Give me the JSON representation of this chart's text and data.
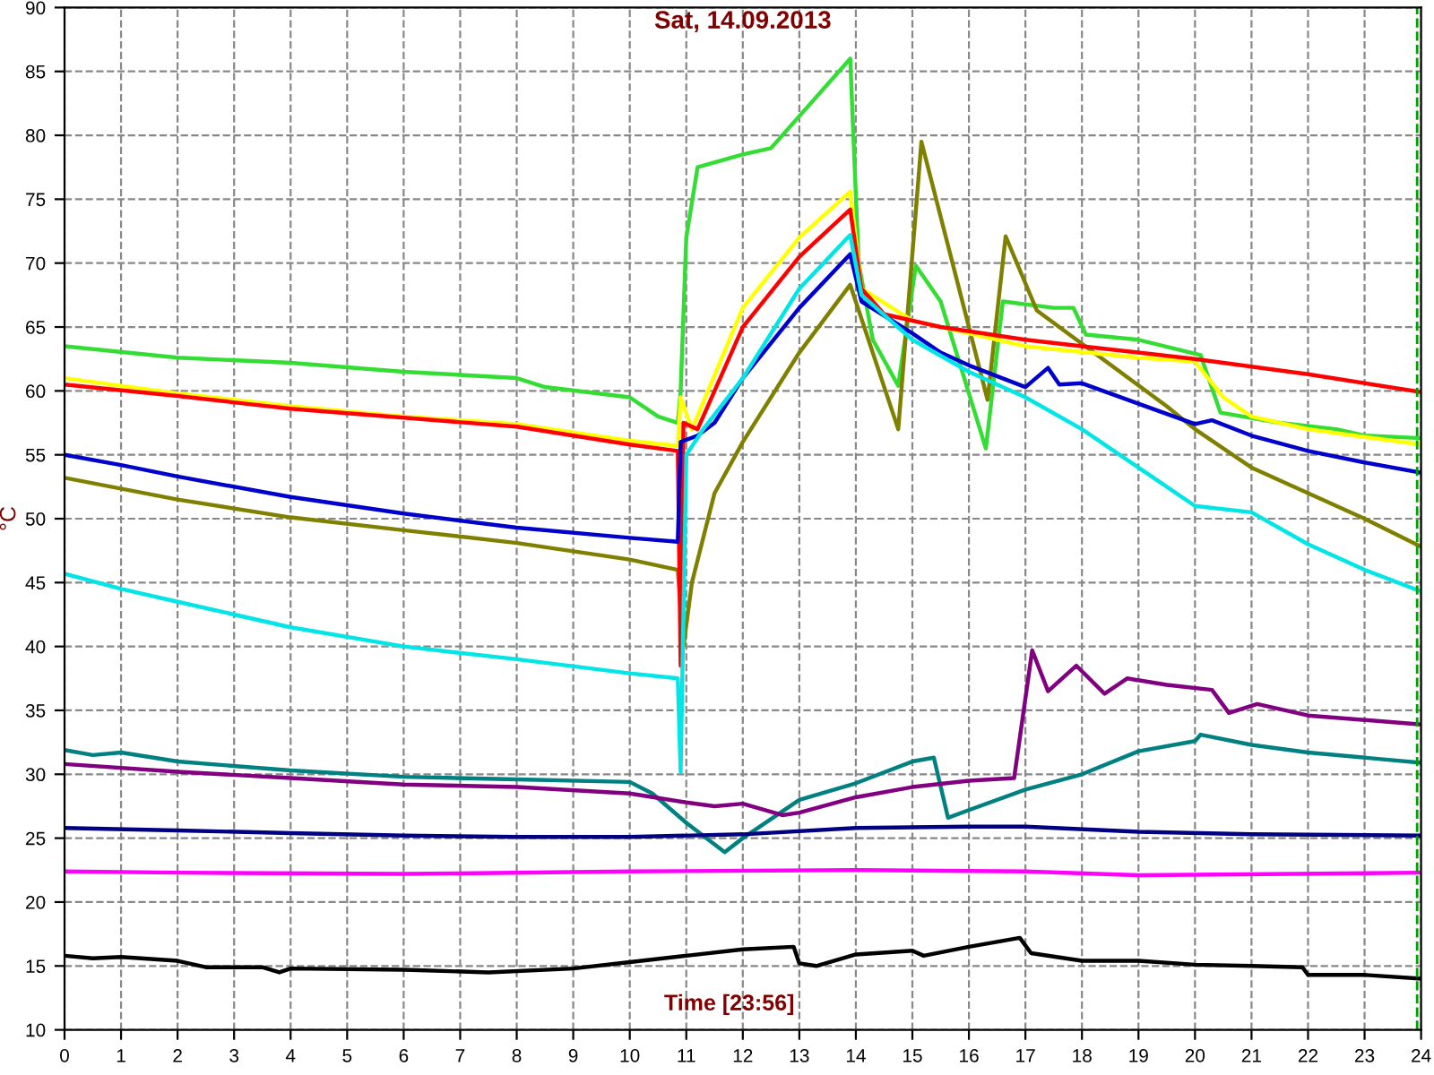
{
  "chart_data": {
    "type": "line",
    "title": "Sat, 14.09.2013",
    "xlabel": "Time [23:56]",
    "ylabel": "°C",
    "xlim": [
      0,
      24
    ],
    "xticks": [
      0,
      1,
      2,
      3,
      4,
      5,
      6,
      7,
      8,
      9,
      10,
      11,
      12,
      13,
      14,
      15,
      16,
      17,
      18,
      19,
      20,
      21,
      22,
      23,
      24
    ],
    "ylim": [
      10,
      90
    ],
    "yticks": [
      10,
      15,
      20,
      25,
      30,
      35,
      40,
      45,
      50,
      55,
      60,
      65,
      70,
      75,
      80,
      85,
      90
    ],
    "grid": true,
    "legend": false,
    "marker": "none",
    "line_style": "solid",
    "ref_lines": [
      {
        "axis": "x",
        "value": 23.93,
        "color": "#00a000",
        "line_style": "dashed"
      }
    ],
    "series": [
      {
        "color": "#33dd33",
        "x": [
          0,
          2,
          4,
          6,
          8,
          8.5,
          10,
          10.5,
          10.85,
          10.9,
          11.0,
          11.2,
          12,
          12.5,
          13,
          13.9,
          14.05,
          14.3,
          14.75,
          15.06,
          15.5,
          16.3,
          16.6,
          17.5,
          17.85,
          18.07,
          19,
          20.1,
          20.45,
          21.5,
          22.5,
          23,
          24
        ],
        "values": [
          63.5,
          62.6,
          62.2,
          61.5,
          61,
          60.3,
          59.5,
          58,
          57.5,
          60,
          72,
          77.5,
          78.5,
          79,
          81.5,
          86,
          70,
          64,
          60.4,
          69.8,
          67,
          55.5,
          67,
          66.5,
          66.5,
          64.4,
          64,
          62.8,
          58.3,
          57.5,
          57,
          56.5,
          56.3
        ]
      },
      {
        "color": "#808000",
        "x": [
          0,
          2,
          4,
          6,
          8,
          10,
          10.85,
          10.95,
          11.1,
          11.5,
          12,
          13,
          13.9,
          14.75,
          15.16,
          16.33,
          16.65,
          17.2,
          19.5,
          20,
          21,
          22,
          23,
          24
        ],
        "values": [
          53.2,
          51.5,
          50.1,
          49.1,
          48.1,
          46.8,
          46,
          40,
          45,
          52,
          56,
          63,
          68.3,
          57,
          79.5,
          59.3,
          72.1,
          66.3,
          58.8,
          57,
          54,
          52,
          50,
          47.8
        ]
      },
      {
        "color": "#ffff00",
        "x": [
          0,
          2,
          4,
          6,
          8,
          10,
          10.85,
          10.9,
          11.1,
          12,
          13,
          13.9,
          14.1,
          15,
          17,
          19,
          20,
          20.5,
          21,
          22,
          24
        ],
        "values": [
          61,
          59.8,
          58.8,
          58,
          57.4,
          56.1,
          55.7,
          59.5,
          57,
          66.5,
          72,
          75.6,
          68,
          65.5,
          63.5,
          62.6,
          62.3,
          59.5,
          58,
          57,
          55.8
        ]
      },
      {
        "color": "#ff0000",
        "x": [
          0,
          2,
          4,
          6,
          8,
          10,
          10.85,
          10.9,
          10.95,
          11.2,
          12,
          13,
          13.9,
          14.1,
          14.5,
          15.5,
          17,
          18,
          20,
          22,
          24
        ],
        "values": [
          60.5,
          59.6,
          58.6,
          57.9,
          57.2,
          55.8,
          55.3,
          38.5,
          57.5,
          57,
          65,
          70.5,
          74.2,
          68,
          66,
          65,
          64,
          63.5,
          62.5,
          61.3,
          59.9
        ]
      },
      {
        "color": "#0000cc",
        "x": [
          0,
          1,
          2,
          4,
          6,
          8,
          10,
          10.85,
          10.9,
          11.2,
          11.5,
          12,
          13,
          13.9,
          14.1,
          15,
          15.5,
          16,
          17,
          17.4,
          17.6,
          18,
          19,
          20,
          20.3,
          21,
          22,
          23,
          24
        ],
        "values": [
          55,
          54.2,
          53.3,
          51.7,
          50.4,
          49.3,
          48.5,
          48.2,
          56,
          56.5,
          57.5,
          61,
          66.5,
          70.7,
          67,
          64.5,
          63,
          62,
          60.3,
          61.8,
          60.5,
          60.6,
          59,
          57.4,
          57.7,
          56.5,
          55.3,
          54.4,
          53.6
        ]
      },
      {
        "color": "#00e5e5",
        "x": [
          0,
          1,
          2,
          4,
          6,
          8,
          10,
          10.85,
          10.9,
          11.0,
          11.3,
          12,
          13,
          13.9,
          14.1,
          15,
          16,
          17,
          18,
          19,
          20,
          21,
          22,
          23,
          24
        ],
        "values": [
          45.7,
          44.5,
          43.5,
          41.5,
          40,
          39,
          37.9,
          37.5,
          30.2,
          55,
          57,
          61,
          68,
          72.2,
          67.5,
          64,
          61.5,
          59.5,
          57,
          54,
          51,
          50.5,
          48,
          46,
          44.3
        ]
      },
      {
        "color": "#008080",
        "x": [
          0,
          0.5,
          1,
          2,
          4,
          6,
          8,
          10,
          10.4,
          11,
          11.68,
          12,
          13,
          14,
          15,
          15.38,
          15.63,
          16,
          17,
          18,
          19,
          20,
          20.1,
          21,
          22,
          24
        ],
        "values": [
          31.9,
          31.5,
          31.7,
          31,
          30.3,
          29.8,
          29.6,
          29.4,
          28.5,
          26.2,
          23.9,
          25,
          28,
          29.3,
          31,
          31.3,
          26.6,
          27.2,
          28.8,
          30,
          31.8,
          32.6,
          33.1,
          32.3,
          31.7,
          30.9
        ]
      },
      {
        "color": "#800080",
        "x": [
          0,
          2,
          4,
          6,
          8,
          10,
          11,
          11.5,
          12,
          12.7,
          13,
          14,
          15,
          16,
          16.8,
          17.12,
          17.4,
          17.9,
          18.4,
          18.8,
          19.5,
          20.3,
          20.6,
          21.1,
          22,
          24
        ],
        "values": [
          30.8,
          30.2,
          29.7,
          29.2,
          29,
          28.5,
          27.8,
          27.5,
          27.7,
          26.8,
          27,
          28.2,
          29,
          29.5,
          29.7,
          39.7,
          36.5,
          38.5,
          36.3,
          37.5,
          37,
          36.6,
          34.8,
          35.5,
          34.6,
          33.9
        ]
      },
      {
        "color": "#000080",
        "x": [
          0,
          2,
          4,
          6,
          8,
          10,
          12,
          14,
          16,
          17,
          19,
          21,
          24
        ],
        "values": [
          25.8,
          25.6,
          25.4,
          25.2,
          25.1,
          25.1,
          25.3,
          25.8,
          25.9,
          25.9,
          25.5,
          25.3,
          25.2
        ]
      },
      {
        "color": "#ff00ff",
        "x": [
          0,
          2,
          6,
          10,
          14,
          17,
          19,
          24
        ],
        "values": [
          22.4,
          22.3,
          22.2,
          22.4,
          22.5,
          22.4,
          22.1,
          22.3
        ]
      },
      {
        "color": "#000000",
        "x": [
          0,
          0.5,
          1,
          2,
          2.5,
          3.5,
          3.8,
          4,
          6,
          7.5,
          9,
          10,
          11,
          12,
          12.9,
          13,
          13.3,
          14,
          15,
          15.2,
          16,
          16.9,
          17.1,
          18,
          19,
          20,
          21,
          21.9,
          22,
          23,
          24
        ],
        "values": [
          15.8,
          15.6,
          15.7,
          15.4,
          14.9,
          14.9,
          14.5,
          14.8,
          14.7,
          14.5,
          14.8,
          15.3,
          15.8,
          16.3,
          16.5,
          15.2,
          15,
          15.9,
          16.2,
          15.8,
          16.5,
          17.2,
          16,
          15.4,
          15.4,
          15.1,
          15,
          14.9,
          14.3,
          14.3,
          14
        ]
      }
    ]
  }
}
